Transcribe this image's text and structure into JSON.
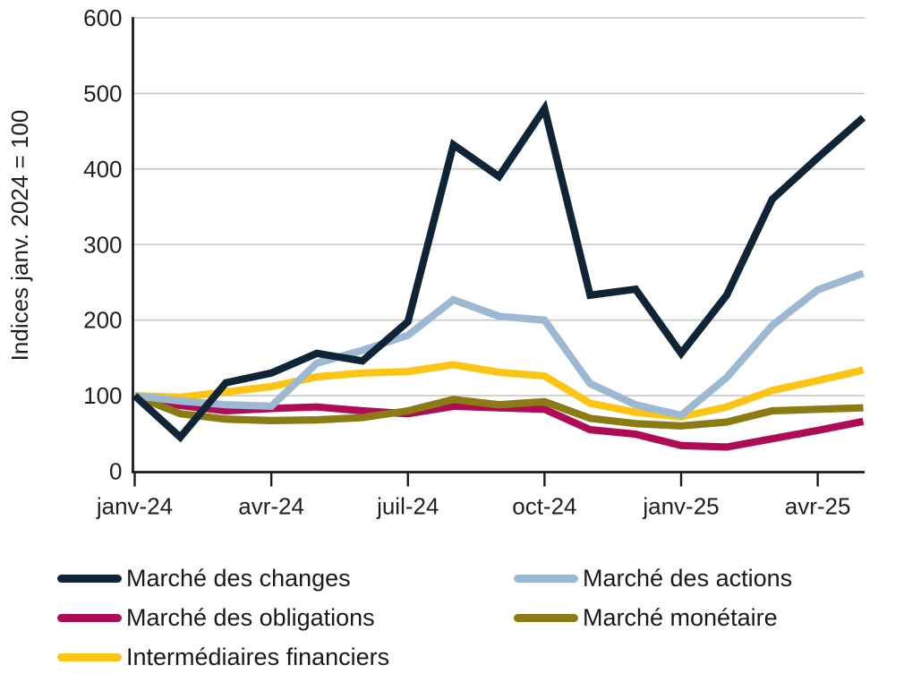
{
  "figure": {
    "background": "#ffffff",
    "text_color": "#1f1f1f",
    "gridline_color": "#c7c7c7",
    "axis_color": "#1a1a1a"
  },
  "chart_data": {
    "type": "line",
    "title": "",
    "xlabel": "",
    "ylabel": "Indices janv. 2024 = 100",
    "ylim": [
      0,
      600
    ],
    "yticks": [
      0,
      100,
      200,
      300,
      400,
      500,
      600
    ],
    "grid": "horizontal gridlines on",
    "legend_position": "bottom, two columns",
    "x": [
      "janv-24",
      "févr-24",
      "mars-24",
      "avr-24",
      "mai-24",
      "juin-24",
      "juil-24",
      "août-24",
      "sept-24",
      "oct-24",
      "nov-24",
      "déc-24",
      "janv-25",
      "févr-25",
      "mars-25",
      "avr-25",
      "mai-25"
    ],
    "x_tick_labels": [
      "janv-24",
      "avr-24",
      "juil-24",
      "oct-24",
      "janv-25",
      "avr-25"
    ],
    "x_tick_indices": [
      0,
      3,
      6,
      9,
      12,
      15
    ],
    "series": [
      {
        "name": "Marché des changes",
        "color": "#0f2537",
        "values": [
          100,
          45,
          117,
          130,
          156,
          146,
          198,
          432,
          390,
          480,
          233,
          241,
          156,
          233,
          360,
          415,
          468
        ]
      },
      {
        "name": "Marché des actions",
        "color": "#9cb8d2",
        "values": [
          100,
          93,
          88,
          86,
          143,
          160,
          180,
          227,
          205,
          200,
          116,
          88,
          74,
          124,
          193,
          240,
          262
        ]
      },
      {
        "name": "Marché des obligations",
        "color": "#b00b57",
        "values": [
          100,
          87,
          80,
          83,
          85,
          80,
          76,
          86,
          84,
          82,
          55,
          49,
          34,
          32,
          43,
          54,
          66
        ]
      },
      {
        "name": "Marché monétaire",
        "color": "#8c7a15",
        "values": [
          100,
          76,
          69,
          67,
          68,
          71,
          80,
          95,
          88,
          92,
          70,
          63,
          60,
          65,
          80,
          82,
          84
        ]
      },
      {
        "name": "Intermédiaires financiers",
        "color": "#fdc513",
        "values": [
          100,
          98,
          105,
          112,
          125,
          130,
          132,
          141,
          131,
          126,
          90,
          78,
          72,
          85,
          107,
          120,
          134
        ]
      }
    ],
    "legend_grid_order": [
      "Marché des changes",
      "Marché des actions",
      "Marché des obligations",
      "Marché monétaire",
      "Intermédiaires financiers"
    ]
  }
}
